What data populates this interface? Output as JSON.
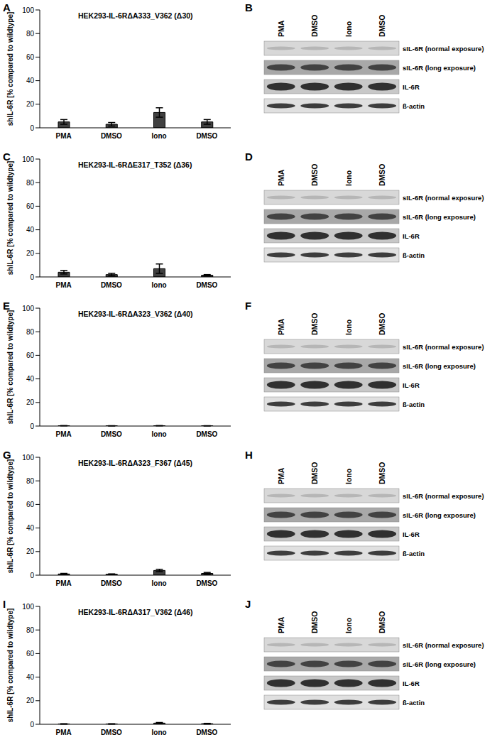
{
  "chart_data": [
    {
      "type": "bar",
      "annotations": [
        "A"
      ],
      "title": "HEK293-IL-6RΔA333_V362 (Δ30)",
      "y_label": "shIL-6R [% compared to wildtype]",
      "categories": [
        "PMA",
        "DMSO",
        "Iono",
        "DMSO"
      ],
      "values": [
        5,
        3,
        13,
        5
      ],
      "errors": [
        2,
        1.5,
        4,
        2
      ],
      "color": "#404040",
      "ylim": [
        0,
        100
      ],
      "yticks": [
        0,
        20,
        40,
        60,
        80,
        100
      ]
    },
    {
      "type": "bar",
      "annotations": [
        "C"
      ],
      "title": "HEK293-IL-6RΔE317_T352 (Δ36)",
      "y_label": "shIL-6R [% compared to wildtype]",
      "categories": [
        "PMA",
        "DMSO",
        "Iono",
        "DMSO"
      ],
      "values": [
        4,
        2,
        7,
        1.5
      ],
      "errors": [
        1.5,
        1,
        4,
        0.5
      ],
      "color": "#404040",
      "ylim": [
        0,
        100
      ],
      "yticks": [
        0,
        20,
        40,
        60,
        80,
        100
      ]
    },
    {
      "type": "bar",
      "annotations": [
        "E"
      ],
      "title": "HEK293-IL-6RΔA323_V362 (Δ40)",
      "y_label": "shIL-6R [% compared to wildtype]",
      "categories": [
        "PMA",
        "DMSO",
        "Iono",
        "DMSO"
      ],
      "values": [
        0.3,
        0.2,
        0.3,
        0.2
      ],
      "errors": [
        0.1,
        0.1,
        0.1,
        0.1
      ],
      "color": "#404040",
      "ylim": [
        0,
        100
      ],
      "yticks": [
        0,
        20,
        40,
        60,
        80,
        100
      ]
    },
    {
      "type": "bar",
      "annotations": [
        "G"
      ],
      "title": "HEK293-IL-6RΔA323_F367 (Δ45)",
      "y_label": "shIL-6R [% compared to wildtype]",
      "categories": [
        "PMA",
        "DMSO",
        "Iono",
        "DMSO"
      ],
      "values": [
        1,
        0.8,
        4,
        1.5
      ],
      "errors": [
        0.5,
        0.3,
        1,
        0.8
      ],
      "color": "#404040",
      "ylim": [
        0,
        100
      ],
      "yticks": [
        0,
        20,
        40,
        60,
        80,
        100
      ]
    },
    {
      "type": "bar",
      "annotations": [
        "I"
      ],
      "title": "HEK293-IL-6RΔA317_V362 (Δ46)",
      "y_label": "shIL-6R [% compared to wildtype]",
      "categories": [
        "PMA",
        "DMSO",
        "Iono",
        "DMSO"
      ],
      "values": [
        0.3,
        0.3,
        1,
        0.5
      ],
      "errors": [
        0.2,
        0.2,
        0.5,
        0.3
      ],
      "color": "#404040",
      "ylim": [
        0,
        100
      ],
      "yticks": [
        0,
        20,
        40,
        60,
        80,
        100
      ]
    }
  ],
  "blots": [
    {
      "annotations": [
        "B"
      ],
      "lanes": [
        "PMA",
        "DMSO",
        "Iono",
        "DMSO"
      ],
      "rows": [
        "sIL-6R (normal exposure)",
        "sIL-6R (long exposure)",
        "IL-6R",
        "ß-actin"
      ]
    },
    {
      "annotations": [
        "D"
      ],
      "lanes": [
        "PMA",
        "DMSO",
        "Iono",
        "DMSO"
      ],
      "rows": [
        "sIL-6R (normal exposure)",
        "sIL-6R (long exposure)",
        "IL-6R",
        "ß-actin"
      ]
    },
    {
      "annotations": [
        "F"
      ],
      "lanes": [
        "PMA",
        "DMSO",
        "Iono",
        "DMSO"
      ],
      "rows": [
        "sIL-6R (normal exposure)",
        "sIL-6R (long exposure)",
        "IL-6R",
        "ß-actin"
      ]
    },
    {
      "annotations": [
        "H"
      ],
      "lanes": [
        "PMA",
        "DMSO",
        "Iono",
        "DMSO"
      ],
      "rows": [
        "sIL-6R (normal exposure)",
        "sIL-6R (long exposure)",
        "IL-6R",
        "ß-actin"
      ]
    },
    {
      "annotations": [
        "J"
      ],
      "lanes": [
        "PMA",
        "DMSO",
        "Iono",
        "DMSO"
      ],
      "rows": [
        "sIL-6R (normal exposure)",
        "sIL-6R (long exposure)",
        "IL-6R",
        "ß-actin"
      ]
    }
  ]
}
